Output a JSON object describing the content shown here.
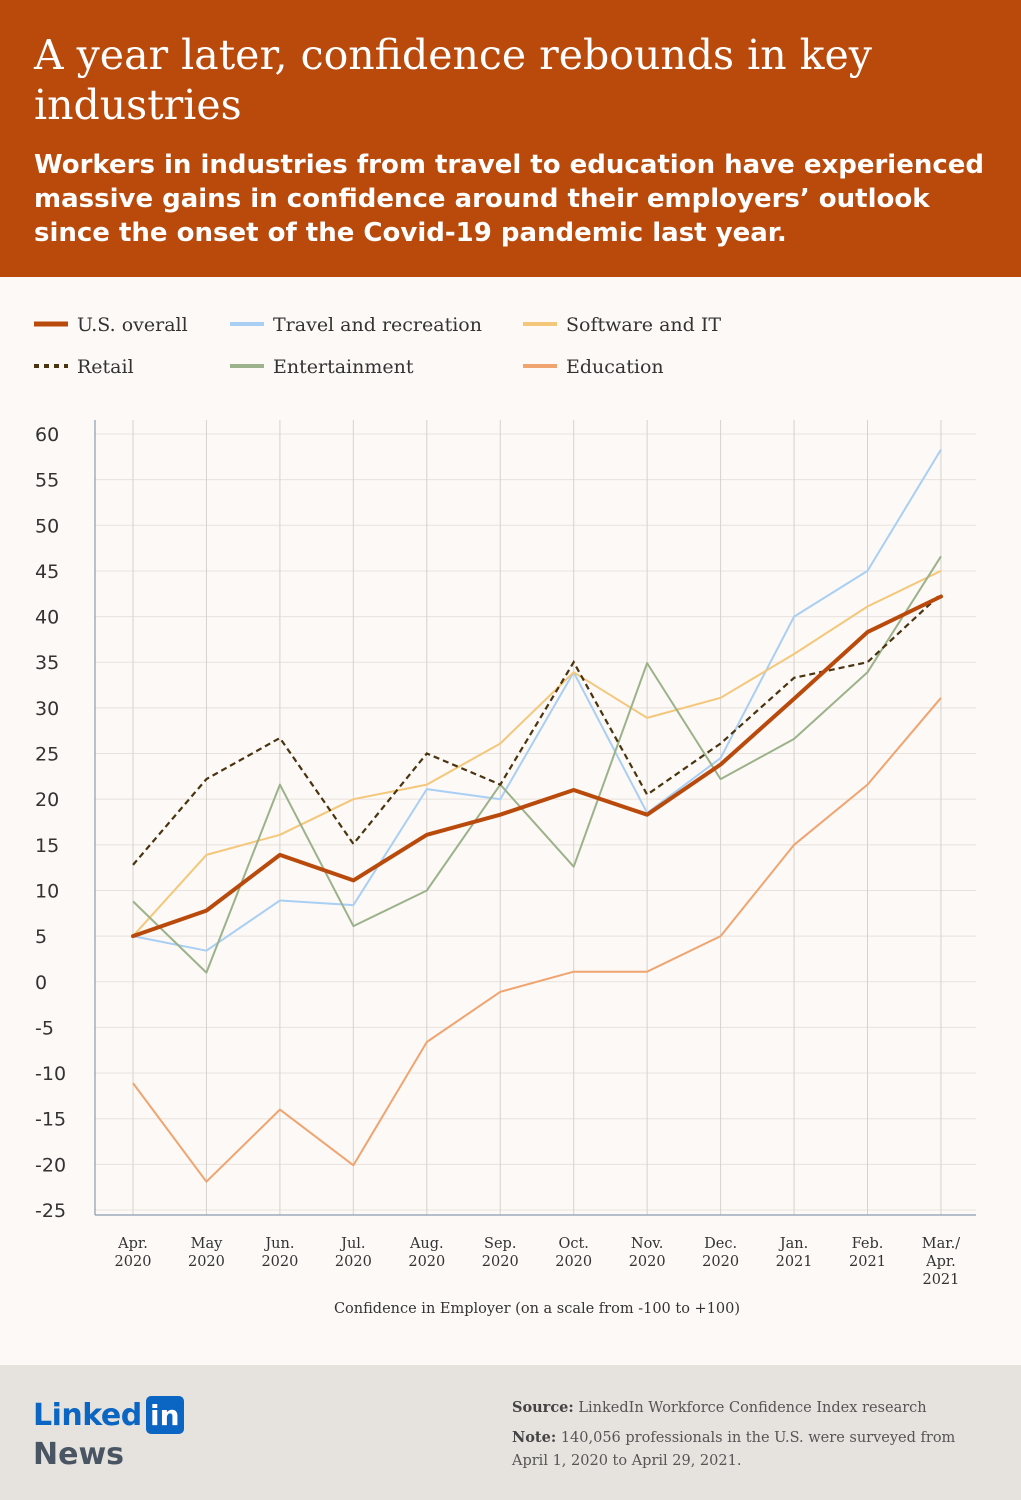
{
  "header": {
    "title": "A year later, confidence rebounds in key industries",
    "subtitle": "Workers in industries from travel to education have experienced massive gains in confidence around their employers’ outlook since the onset of the Covid-19 pandemic last year."
  },
  "chart_data": {
    "type": "line",
    "xlabel": "Confidence in Employer (on a scale from -100 to +100)",
    "ylabel": "",
    "ylim": [
      -25,
      60
    ],
    "yticks": [
      60,
      55,
      50,
      45,
      40,
      35,
      30,
      25,
      20,
      15,
      10,
      5,
      0,
      -5,
      -10,
      -15,
      -20,
      -25
    ],
    "categories": [
      [
        "Apr.",
        "2020"
      ],
      [
        "May",
        "2020"
      ],
      [
        "Jun.",
        "2020"
      ],
      [
        "Jul.",
        "2020"
      ],
      [
        "Aug.",
        "2020"
      ],
      [
        "Sep.",
        "2020"
      ],
      [
        "Oct.",
        "2020"
      ],
      [
        "Nov.",
        "2020"
      ],
      [
        "Dec.",
        "2020"
      ],
      [
        "Jan.",
        "2021"
      ],
      [
        "Feb.",
        "2021"
      ],
      [
        "Mar./",
        "Apr.",
        "2021"
      ]
    ],
    "grid": true,
    "legend_position": "top",
    "series": [
      {
        "name": "U.S. overall",
        "color": "#b94a0c",
        "style": "thick",
        "values": [
          5,
          7.8,
          13.9,
          11.1,
          16.1,
          18.3,
          21,
          18.3,
          23.8,
          31,
          38.3,
          42.2
        ]
      },
      {
        "name": "Travel and recreation",
        "color": "#a9cff4",
        "style": "thin",
        "values": [
          5,
          3.4,
          8.9,
          8.4,
          21.1,
          20,
          33.9,
          18.5,
          24.5,
          40,
          45,
          58.3
        ]
      },
      {
        "name": "Software and IT",
        "color": "#f4c77a",
        "style": "thin",
        "values": [
          5,
          13.9,
          16.1,
          20,
          21.6,
          26.1,
          33.9,
          28.9,
          31.1,
          35.9,
          41.1,
          45
        ]
      },
      {
        "name": "Retail",
        "color": "#4a3410",
        "style": "dotted",
        "values": [
          12.8,
          22.2,
          26.7,
          15.1,
          25,
          21.6,
          35,
          20.5,
          26.1,
          33.3,
          35,
          42.5
        ]
      },
      {
        "name": "Entertainment",
        "color": "#9cb28a",
        "style": "thin",
        "values": [
          8.8,
          1,
          21.6,
          6.1,
          10,
          21.6,
          12.6,
          34.9,
          22.2,
          26.6,
          33.9,
          46.6
        ]
      },
      {
        "name": "Education",
        "color": "#f0a470",
        "style": "thin",
        "values": [
          -11.1,
          -21.9,
          -14,
          -20.1,
          -6.6,
          -1.1,
          1.1,
          1.1,
          5,
          15,
          21.6,
          31.1
        ]
      }
    ]
  },
  "footer": {
    "logo_word": "Linked",
    "logo_in": "in",
    "logo_news": "News",
    "source_label": "Source:",
    "source_text": "LinkedIn Workforce Confidence Index research",
    "note_label": "Note:",
    "note_text": "140,056 professionals in the U.S. were surveyed from April 1, 2020 to April 29, 2021."
  }
}
